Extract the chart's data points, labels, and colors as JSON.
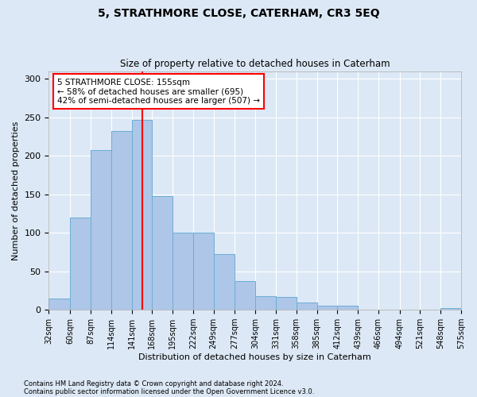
{
  "title": "5, STRATHMORE CLOSE, CATERHAM, CR3 5EQ",
  "subtitle": "Size of property relative to detached houses in Caterham",
  "xlabel": "Distribution of detached houses by size in Caterham",
  "ylabel": "Number of detached properties",
  "footnote1": "Contains HM Land Registry data © Crown copyright and database right 2024.",
  "footnote2": "Contains public sector information licensed under the Open Government Licence v3.0.",
  "bar_edges": [
    32,
    60,
    87,
    114,
    141,
    168,
    195,
    222,
    249,
    277,
    304,
    331,
    358,
    385,
    412,
    439,
    466,
    494,
    521,
    548,
    575
  ],
  "bar_heights": [
    15,
    120,
    207,
    232,
    247,
    148,
    100,
    100,
    72,
    37,
    18,
    17,
    10,
    5,
    5,
    0,
    0,
    0,
    0,
    2
  ],
  "bar_color": "#aec6e8",
  "bar_edgecolor": "#6baed6",
  "vline_x": 155,
  "vline_color": "red",
  "annotation_text": "5 STRATHMORE CLOSE: 155sqm\n← 58% of detached houses are smaller (695)\n42% of semi-detached houses are larger (507) →",
  "annotation_box_color": "white",
  "annotation_box_edgecolor": "red",
  "ylim": [
    0,
    310
  ],
  "yticks": [
    0,
    50,
    100,
    150,
    200,
    250,
    300
  ],
  "bg_color": "#dce8f5",
  "plot_bg_color": "#dce8f5",
  "grid_color": "white"
}
